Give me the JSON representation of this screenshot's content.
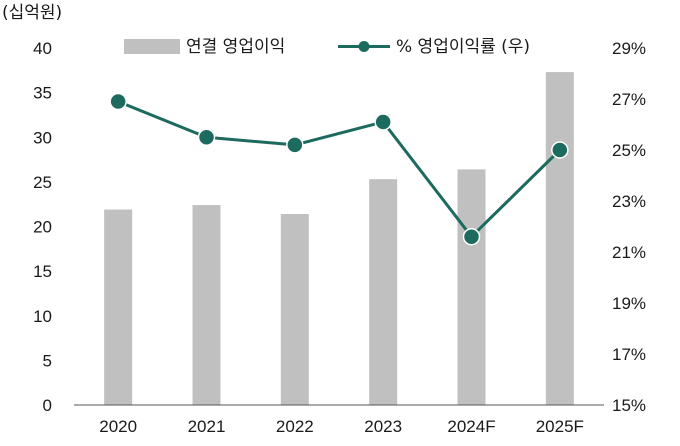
{
  "chart_data": {
    "type": "bar",
    "categories": [
      "2020",
      "2021",
      "2022",
      "2023",
      "2024F",
      "2025F"
    ],
    "y_unit_label": "(십억원)",
    "ylim": [
      0,
      40
    ],
    "y_ticks": [
      "0",
      "5",
      "10",
      "15",
      "20",
      "25",
      "30",
      "35",
      "40"
    ],
    "y2lim": [
      15,
      29
    ],
    "y2_ticks": [
      "15%",
      "17%",
      "19%",
      "21%",
      "23%",
      "25%",
      "27%",
      "29%"
    ],
    "grid": false,
    "legend_placement": "top",
    "series": [
      {
        "name": "연결 영업이익",
        "type": "bar",
        "axis": "left",
        "color": "#c0c0c0",
        "values": [
          21.9,
          22.4,
          21.4,
          25.3,
          26.4,
          37.3
        ]
      },
      {
        "name": "% 영업이익률 (우)",
        "type": "line",
        "axis": "right",
        "color": "#1c6b5e",
        "values": [
          26.9,
          25.5,
          25.2,
          26.1,
          21.6,
          25.0
        ]
      }
    ]
  }
}
